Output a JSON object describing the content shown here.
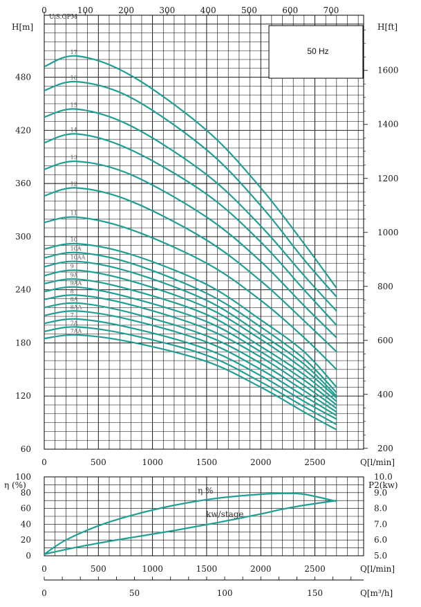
{
  "colors": {
    "curve": "#1f9e94",
    "grid": "#000000",
    "background": "#ffffff"
  },
  "chart_data": [
    {
      "type": "line",
      "title": "",
      "frequency_label": "50 Hz",
      "xlabel": "Q[l/min]",
      "x_top_label": "U.S.GPM",
      "ylabel_left": "H[m]",
      "ylabel_right": "H[ft]",
      "xlim": [
        0,
        2950
      ],
      "ylim": [
        60,
        550
      ],
      "x_ticks": [
        0,
        500,
        1000,
        1500,
        2000,
        2500
      ],
      "x_tick_labels": [
        "0",
        "500",
        "1000",
        "1500",
        "2000",
        "2500"
      ],
      "x_top_ticks_gpm": [
        0,
        100,
        200,
        300,
        400,
        500,
        600,
        700
      ],
      "x_top_tick_labels": [
        "0",
        "100",
        "200",
        "300",
        "400",
        "500",
        "600",
        "700"
      ],
      "y_ticks": [
        60,
        120,
        180,
        240,
        300,
        360,
        420,
        480
      ],
      "y_tick_labels": [
        "60",
        "120",
        "180",
        "240",
        "300",
        "360",
        "420",
        "480"
      ],
      "y_right_ticks_ft": [
        200,
        400,
        600,
        800,
        1000,
        1200,
        1400,
        1600
      ],
      "y_right_tick_labels": [
        "200",
        "400",
        "600",
        "800",
        "1000",
        "1200",
        "1400",
        "1600"
      ],
      "grid": true,
      "x": [
        0,
        300,
        800,
        1500,
        2000,
        2400,
        2700
      ],
      "series": [
        {
          "name": "17",
          "values": [
            492,
            504,
            482,
            420,
            355,
            292,
            242
          ]
        },
        {
          "name": "16",
          "values": [
            465,
            475,
            457,
            398,
            335,
            274,
            232
          ]
        },
        {
          "name": "15",
          "values": [
            435,
            444,
            425,
            370,
            312,
            256,
            216
          ]
        },
        {
          "name": "14",
          "values": [
            406,
            416,
            398,
            348,
            294,
            240,
            200
          ]
        },
        {
          "name": "13",
          "values": [
            376,
            385,
            370,
            322,
            272,
            222,
            186
          ]
        },
        {
          "name": "12",
          "values": [
            346,
            355,
            340,
            296,
            250,
            205,
            170
          ]
        },
        {
          "name": "11",
          "values": [
            316,
            322,
            308,
            270,
            228,
            186,
            150
          ]
        },
        {
          "name": "10",
          "values": [
            286,
            292,
            280,
            246,
            206,
            170,
            130
          ]
        },
        {
          "name": "10A",
          "values": [
            276,
            282,
            270,
            236,
            198,
            162,
            124
          ]
        },
        {
          "name": "10AA",
          "values": [
            266,
            272,
            260,
            228,
            190,
            156,
            120
          ]
        },
        {
          "name": "9",
          "values": [
            256,
            262,
            250,
            220,
            184,
            150,
            118
          ]
        },
        {
          "name": "9A",
          "values": [
            247,
            252,
            240,
            212,
            176,
            144,
            114
          ]
        },
        {
          "name": "9AA",
          "values": [
            238,
            243,
            231,
            204,
            170,
            138,
            110
          ]
        },
        {
          "name": "8",
          "values": [
            229,
            234,
            223,
            196,
            164,
            132,
            106
          ]
        },
        {
          "name": "8A",
          "values": [
            220,
            225,
            214,
            188,
            157,
            126,
            102
          ]
        },
        {
          "name": "8AA",
          "values": [
            211,
            216,
            206,
            181,
            150,
            120,
            98
          ]
        },
        {
          "name": "7",
          "values": [
            202,
            207,
            197,
            173,
            143,
            114,
            94
          ]
        },
        {
          "name": "7A",
          "values": [
            193,
            198,
            189,
            166,
            136,
            108,
            88
          ]
        },
        {
          "name": "7AA",
          "values": [
            185,
            189,
            181,
            159,
            130,
            102,
            82
          ]
        }
      ]
    },
    {
      "type": "line",
      "title": "",
      "xlabel": "Q[l/min]",
      "x_m3h_label": "Q[m³/h]",
      "ylabel_left": "η (%)",
      "ylabel_right": "P2(kw)",
      "xlim": [
        0,
        2950
      ],
      "ylim": [
        0,
        100
      ],
      "y_ticks": [
        0,
        20,
        40,
        60,
        80,
        100
      ],
      "y_tick_labels": [
        "0",
        "20",
        "40",
        "60",
        "80",
        "100"
      ],
      "y_right_ticks_kw": [
        5.0,
        6.0,
        7.0,
        8.0,
        9.0,
        10.0
      ],
      "y_right_tick_labels": [
        "5.0",
        "6.0",
        "7.0",
        "8.0",
        "9.0",
        "10.0"
      ],
      "x_ticks": [
        0,
        500,
        1000,
        1500,
        2000,
        2500
      ],
      "x_tick_labels": [
        "0",
        "500",
        "1000",
        "1500",
        "2000",
        "2500"
      ],
      "x_m3h_ticks": [
        0,
        50,
        100,
        150
      ],
      "x_m3h_tick_labels": [
        "0",
        "50",
        "100",
        "150"
      ],
      "grid": true,
      "x": [
        0,
        200,
        500,
        800,
        1200,
        1600,
        2000,
        2200,
        2400,
        2700
      ],
      "series": [
        {
          "name": "η %",
          "values": [
            2,
            20,
            38,
            51,
            64,
            73,
            78,
            79,
            78,
            69
          ]
        },
        {
          "name": "kw/stage",
          "values": [
            5.1,
            5.4,
            5.8,
            6.15,
            6.6,
            7.1,
            7.65,
            7.95,
            8.2,
            8.5
          ]
        }
      ]
    }
  ]
}
